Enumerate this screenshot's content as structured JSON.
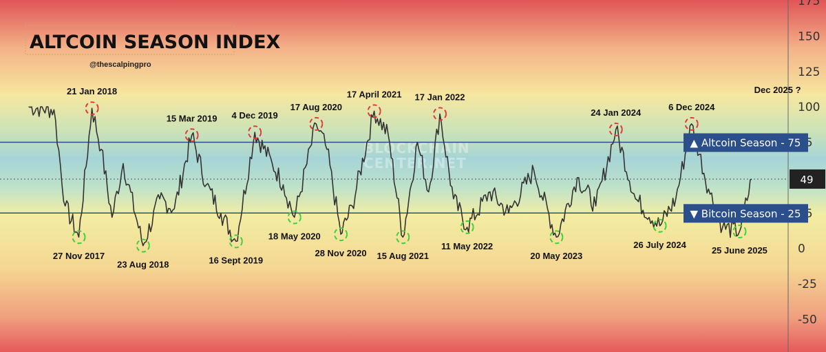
{
  "chart_data": {
    "type": "line",
    "title": "ALTCOIN SEASON INDEX",
    "subtitle": "@thescalpingpro",
    "watermark": [
      "BLOCKCHAIN",
      "CENTER.NET"
    ],
    "ylim": [
      -60,
      175
    ],
    "y_ticks": [
      "175",
      "150",
      "125",
      "100",
      "75",
      "49",
      "25",
      "0",
      "-25",
      "-50"
    ],
    "current_value": "49",
    "thresholds": [
      {
        "label": "▲ Altcoin Season - 75",
        "value": 75
      },
      {
        "label": "▼ Bitcoin Season - 25",
        "value": 25
      }
    ],
    "series": [
      {
        "x": [
          "2017-05-01",
          "2017-08-15",
          "2017-10-01",
          "2017-11-27",
          "2018-01-21",
          "2018-03-01",
          "2018-04-15",
          "2018-06-01",
          "2018-08-23",
          "2018-11-01",
          "2019-01-01",
          "2019-03-15",
          "2019-05-15",
          "2019-07-15",
          "2019-09-16",
          "2019-12-04",
          "2020-02-15",
          "2020-04-01",
          "2020-05-18",
          "2020-08-17",
          "2020-10-01",
          "2020-11-28",
          "2021-01-15",
          "2021-04-17",
          "2021-06-15",
          "2021-08-15",
          "2021-10-15",
          "2021-12-01",
          "2022-01-17",
          "2022-03-15",
          "2022-05-11",
          "2022-08-15",
          "2022-11-01",
          "2023-02-15",
          "2023-05-20",
          "2023-08-15",
          "2023-11-01",
          "2024-01-24",
          "2024-04-15",
          "2024-07-26",
          "2024-10-01",
          "2024-12-06",
          "2025-02-15",
          "2025-04-15",
          "2025-06-25",
          "2025-08-15"
        ],
        "y": [
          100,
          98,
          30,
          8,
          99,
          70,
          22,
          60,
          2,
          35,
          28,
          80,
          45,
          25,
          5,
          82,
          60,
          45,
          22,
          88,
          70,
          10,
          30,
          97,
          80,
          8,
          75,
          40,
          95,
          35,
          15,
          40,
          25,
          55,
          8,
          50,
          30,
          84,
          35,
          16,
          35,
          88,
          42,
          15,
          12,
          49
        ]
      }
    ],
    "annotations": [
      {
        "label": "27 Nov 2017",
        "x": "2017-11-27",
        "y": 8,
        "kind": "low"
      },
      {
        "label": "21 Jan 2018",
        "x": "2018-01-21",
        "y": 99,
        "kind": "high"
      },
      {
        "label": "23 Aug 2018",
        "x": "2018-08-23",
        "y": 2,
        "kind": "low"
      },
      {
        "label": "15 Mar 2019",
        "x": "2019-03-15",
        "y": 80,
        "kind": "high"
      },
      {
        "label": "16 Sept 2019",
        "x": "2019-09-16",
        "y": 5,
        "kind": "low"
      },
      {
        "label": "4 Dec 2019",
        "x": "2019-12-04",
        "y": 82,
        "kind": "high"
      },
      {
        "label": "18 May 2020",
        "x": "2020-05-18",
        "y": 22,
        "kind": "low"
      },
      {
        "label": "17 Aug 2020",
        "x": "2020-08-17",
        "y": 88,
        "kind": "high"
      },
      {
        "label": "28 Nov 2020",
        "x": "2020-11-28",
        "y": 10,
        "kind": "low"
      },
      {
        "label": "17 April 2021",
        "x": "2021-04-17",
        "y": 97,
        "kind": "high"
      },
      {
        "label": "15 Aug 2021",
        "x": "2021-08-15",
        "y": 8,
        "kind": "low"
      },
      {
        "label": "17 Jan 2022",
        "x": "2022-01-17",
        "y": 95,
        "kind": "high"
      },
      {
        "label": "11 May 2022",
        "x": "2022-05-11",
        "y": 15,
        "kind": "low"
      },
      {
        "label": "20 May 2023",
        "x": "2023-05-20",
        "y": 8,
        "kind": "low"
      },
      {
        "label": "24 Jan 2024",
        "x": "2024-01-24",
        "y": 84,
        "kind": "high"
      },
      {
        "label": "26 July 2024",
        "x": "2024-07-26",
        "y": 16,
        "kind": "low"
      },
      {
        "label": "6 Dec 2024",
        "x": "2024-12-06",
        "y": 88,
        "kind": "high"
      },
      {
        "label": "25 June 2025",
        "x": "2025-06-25",
        "y": 12,
        "kind": "low"
      },
      {
        "label": "Dec 2025 ?",
        "x": "2025-12-01",
        "y": 100,
        "kind": "text"
      }
    ],
    "colors": {
      "line": "#333333",
      "threshold": "#2b4f8a",
      "high_marker": "#e03a3a",
      "low_marker": "#3ecf3e",
      "current_badge": "#222222"
    }
  }
}
